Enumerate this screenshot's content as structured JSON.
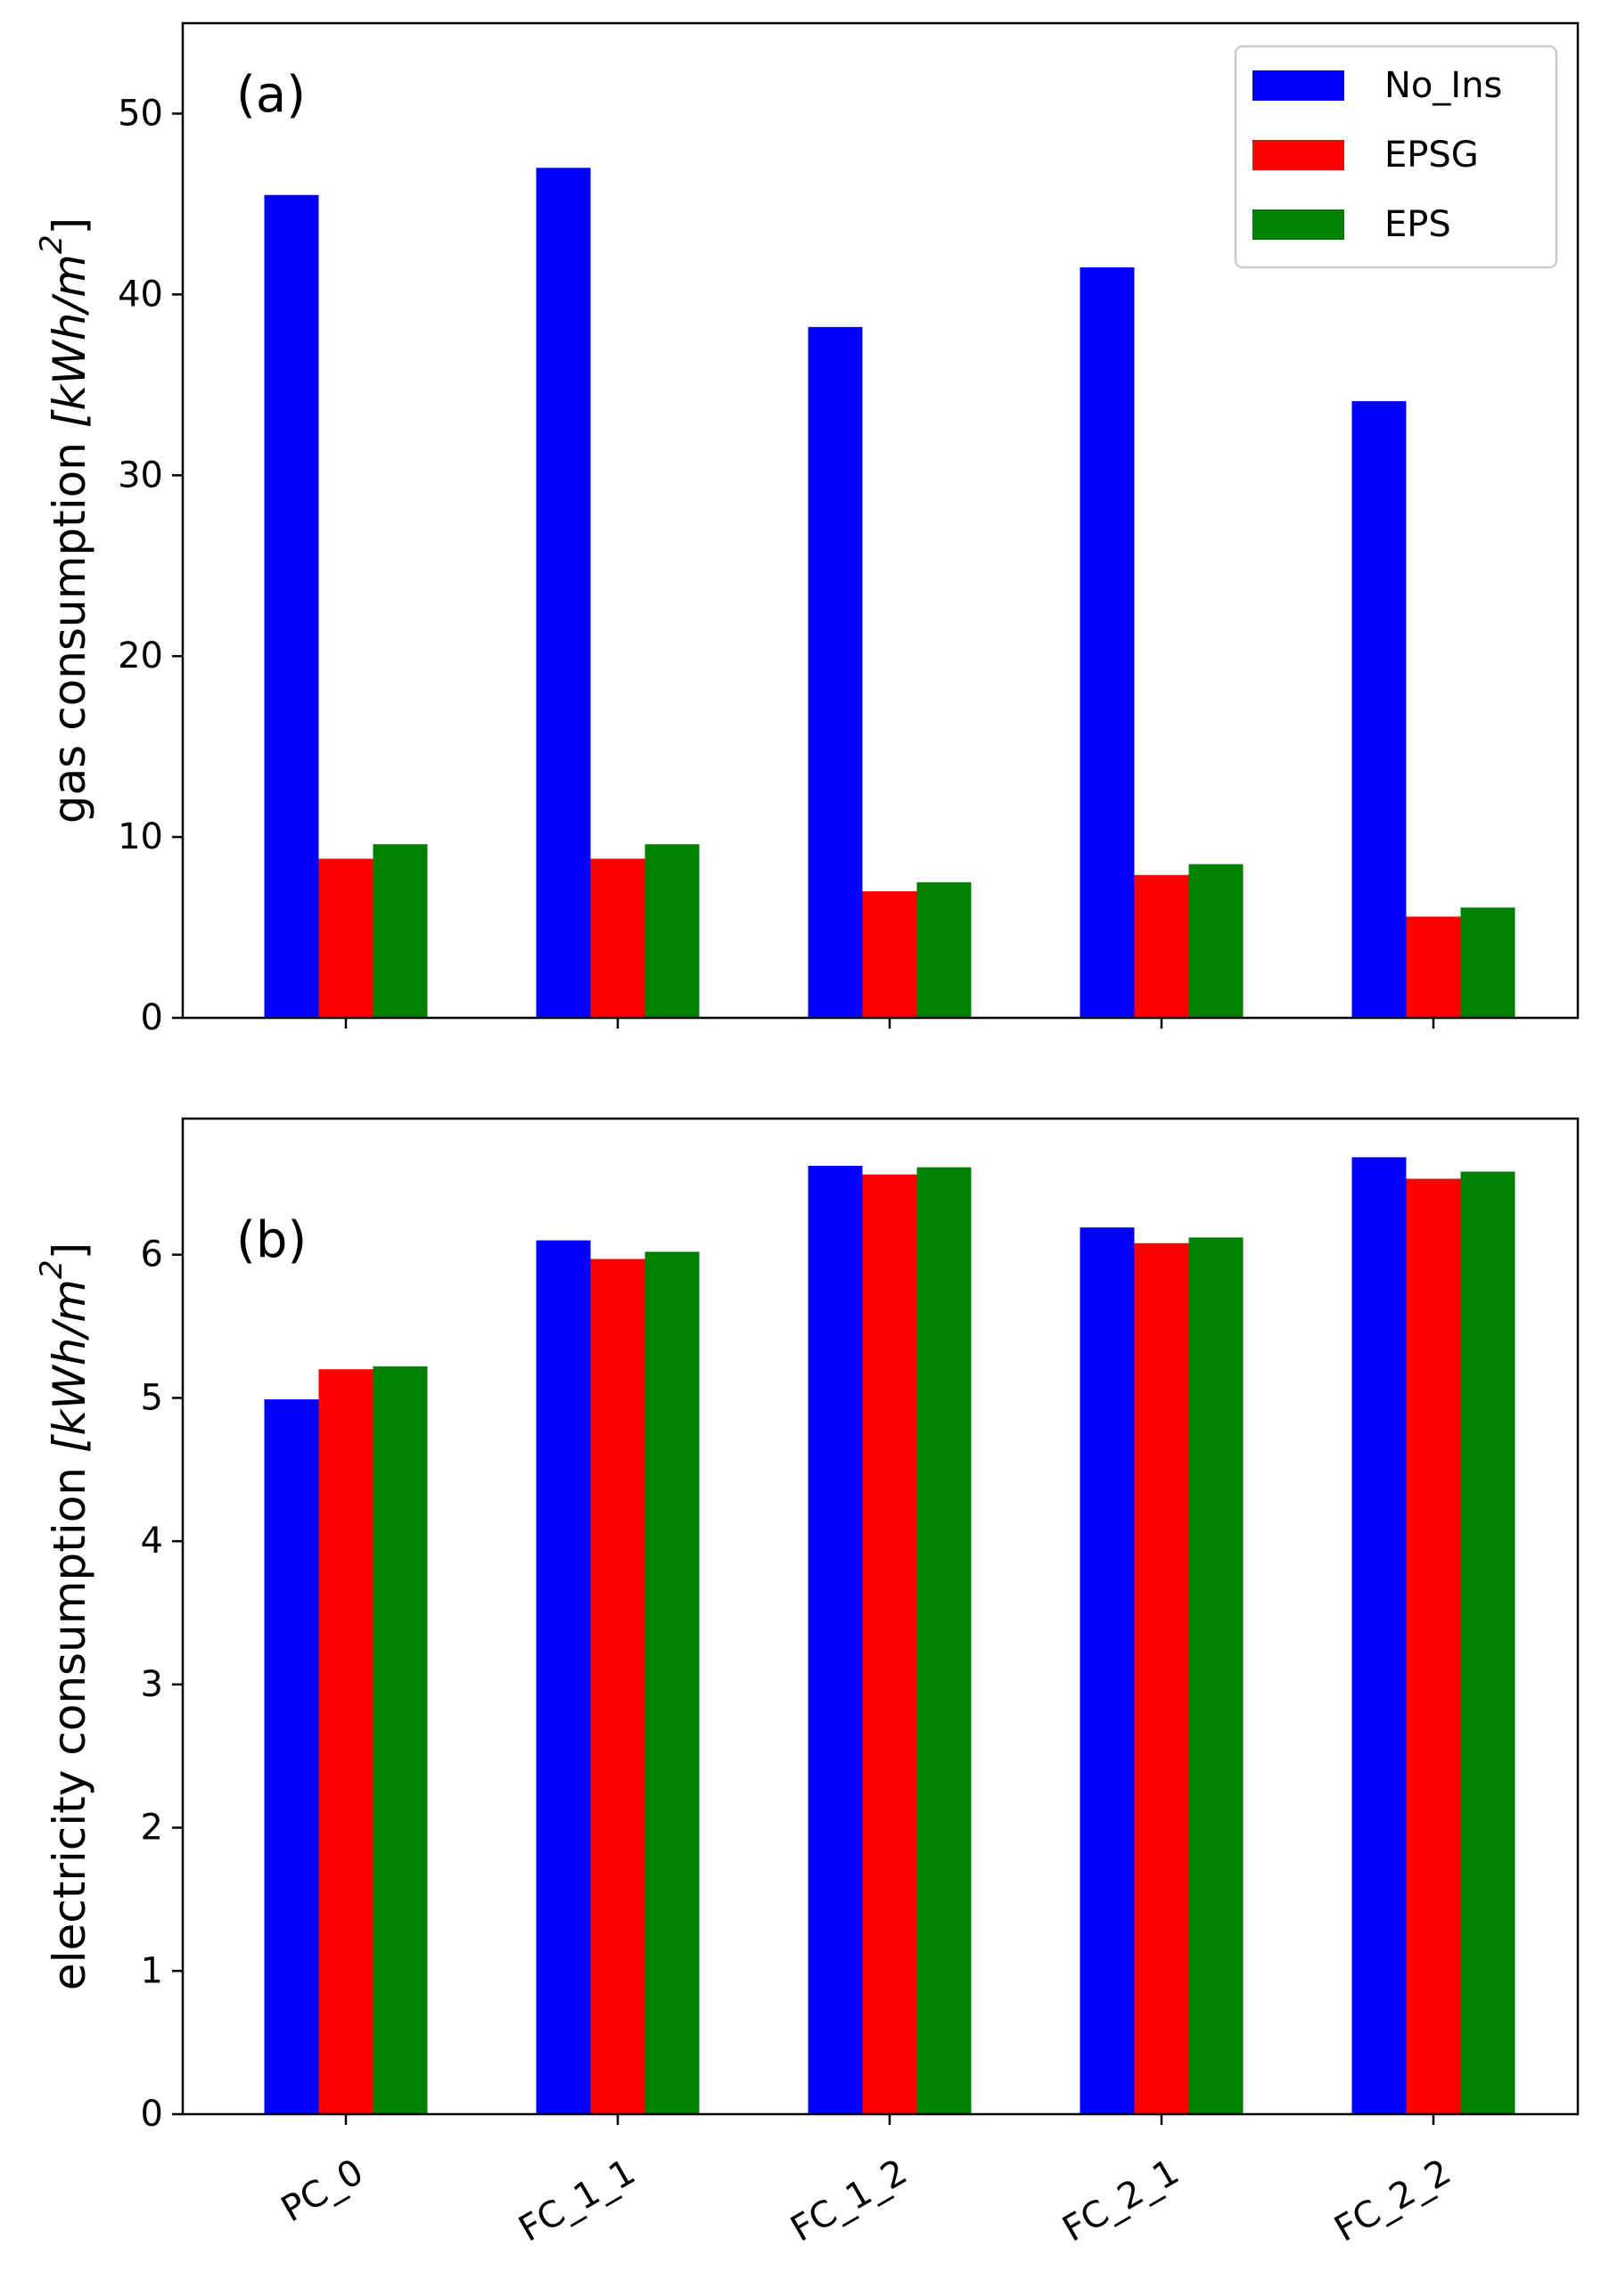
{
  "colors": {
    "No_Ins": "#0000ff",
    "EPSG": "#ff0000",
    "EPS": "#008000",
    "axis": "#000000",
    "legend_border": "#cccccc"
  },
  "chart_data": [
    {
      "type": "bar",
      "panel_label": "(a)",
      "categories": [
        "PC_0",
        "FC_1_1",
        "FC_1_2",
        "FC_2_1",
        "FC_2_2"
      ],
      "series": [
        {
          "name": "No_Ins",
          "values": [
            45.5,
            47.0,
            38.2,
            41.5,
            34.1
          ]
        },
        {
          "name": "EPSG",
          "values": [
            8.8,
            8.8,
            7.0,
            7.9,
            5.6
          ]
        },
        {
          "name": "EPS",
          "values": [
            9.6,
            9.6,
            7.5,
            8.5,
            6.1
          ]
        }
      ],
      "ylabel_text": "gas consumption ",
      "ylabel_unit_main": "[kWh/m",
      "ylabel_unit_sup": "2",
      "ylabel_unit_close": "]",
      "ylim": [
        0,
        55
      ],
      "yticks": [
        0,
        10,
        20,
        30,
        40,
        50
      ],
      "legend": {
        "position": "top-right",
        "entries": [
          "No_Ins",
          "EPSG",
          "EPS"
        ]
      },
      "grid": false,
      "show_xticklabels": false
    },
    {
      "type": "bar",
      "panel_label": "(b)",
      "categories": [
        "PC_0",
        "FC_1_1",
        "FC_1_2",
        "FC_2_1",
        "FC_2_2"
      ],
      "series": [
        {
          "name": "No_Ins",
          "values": [
            4.99,
            6.1,
            6.62,
            6.19,
            6.68
          ]
        },
        {
          "name": "EPSG",
          "values": [
            5.2,
            5.97,
            6.56,
            6.08,
            6.53
          ]
        },
        {
          "name": "EPS",
          "values": [
            5.22,
            6.02,
            6.61,
            6.12,
            6.58
          ]
        }
      ],
      "ylabel_text": "electricity consumption ",
      "ylabel_unit_main": "[kWh/m",
      "ylabel_unit_sup": "2",
      "ylabel_unit_close": "]",
      "ylim": [
        0,
        6.95
      ],
      "yticks": [
        0,
        1,
        2,
        3,
        4,
        5,
        6
      ],
      "legend": null,
      "grid": false,
      "show_xticklabels": true
    }
  ]
}
